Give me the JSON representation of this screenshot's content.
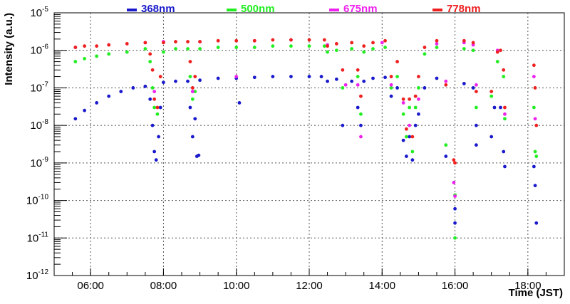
{
  "chart_data": {
    "type": "scatter",
    "title": "",
    "xlabel": "Time (JST)",
    "ylabel": "Intensity (a.u.)",
    "xlim": [
      "05:00",
      "19:00"
    ],
    "ylim": [
      1e-12,
      1e-05
    ],
    "y_scale": "log",
    "grid": true,
    "legend_position": "top",
    "x_tick_labels": [
      "06:00",
      "08:00",
      "10:00",
      "12:00",
      "14:00",
      "16:00",
      "18:00"
    ],
    "y_tick_labels": [
      {
        "value": 1e-12,
        "mantissa": "10",
        "exponent": "-12"
      },
      {
        "value": 1e-11,
        "mantissa": "10",
        "exponent": "-11"
      },
      {
        "value": 1e-10,
        "mantissa": "10",
        "exponent": "-10"
      },
      {
        "value": 1e-09,
        "mantissa": "10",
        "exponent": "-9"
      },
      {
        "value": 1e-08,
        "mantissa": "10",
        "exponent": "-8"
      },
      {
        "value": 1e-07,
        "mantissa": "10",
        "exponent": "-7"
      },
      {
        "value": 1e-06,
        "mantissa": "10",
        "exponent": "-6"
      },
      {
        "value": 1e-05,
        "mantissa": "10",
        "exponent": "-5"
      }
    ],
    "series": [
      {
        "name": "368nm",
        "color": "#1a1acc",
        "points": [
          [
            "05:35",
            1.5e-08
          ],
          [
            "05:50",
            2.5e-08
          ],
          [
            "06:10",
            4e-08
          ],
          [
            "06:30",
            6e-08
          ],
          [
            "06:50",
            8e-08
          ],
          [
            "07:10",
            1e-07
          ],
          [
            "07:30",
            1.1e-07
          ],
          [
            "07:38",
            5e-08
          ],
          [
            "07:42",
            1e-08
          ],
          [
            "07:45",
            2e-09
          ],
          [
            "07:48",
            1.2e-09
          ],
          [
            "07:52",
            5e-09
          ],
          [
            "07:55",
            3e-08
          ],
          [
            "08:00",
            1.4e-07
          ],
          [
            "08:20",
            1.5e-07
          ],
          [
            "08:40",
            1.5e-07
          ],
          [
            "08:44",
            3e-08
          ],
          [
            "08:48",
            5e-09
          ],
          [
            "08:52",
            1.5e-08
          ],
          [
            "08:55",
            1.5e-09
          ],
          [
            "08:58",
            1.6e-09
          ],
          [
            "09:00",
            1.6e-07
          ],
          [
            "09:30",
            1.8e-07
          ],
          [
            "10:00",
            1.8e-07
          ],
          [
            "10:05",
            4e-08
          ],
          [
            "10:30",
            1.9e-07
          ],
          [
            "11:00",
            2e-07
          ],
          [
            "11:30",
            2e-07
          ],
          [
            "12:00",
            2e-07
          ],
          [
            "12:20",
            2e-07
          ],
          [
            "12:30",
            1.5e-07
          ],
          [
            "12:45",
            1.7e-07
          ],
          [
            "12:55",
            1e-08
          ],
          [
            "13:10",
            1.5e-07
          ],
          [
            "13:20",
            3e-08
          ],
          [
            "13:25",
            1e-08
          ],
          [
            "13:30",
            1.5e-07
          ],
          [
            "13:45",
            1.8e-07
          ],
          [
            "14:05",
            1.9e-07
          ],
          [
            "14:15",
            6e-08
          ],
          [
            "14:25",
            1e-07
          ],
          [
            "14:35",
            4e-09
          ],
          [
            "14:40",
            1.5e-09
          ],
          [
            "14:45",
            5e-09
          ],
          [
            "14:50",
            1.2e-09
          ],
          [
            "14:55",
            1e-08
          ],
          [
            "15:00",
            2e-08
          ],
          [
            "15:10",
            1e-07
          ],
          [
            "15:30",
            1.8e-07
          ],
          [
            "15:45",
            1.5e-09
          ],
          [
            "16:00",
            6e-11
          ],
          [
            "16:00",
            2.5e-11
          ],
          [
            "16:15",
            1.3e-07
          ],
          [
            "16:30",
            1e-07
          ],
          [
            "16:35",
            1e-08
          ],
          [
            "16:35",
            3e-09
          ],
          [
            "17:00",
            5e-09
          ],
          [
            "17:05",
            3e-08
          ],
          [
            "17:15",
            3e-08
          ],
          [
            "17:20",
            2e-09
          ],
          [
            "17:22",
            8e-10
          ],
          [
            "18:10",
            8e-10
          ],
          [
            "18:12",
            2.5e-10
          ],
          [
            "18:14",
            2.5e-11
          ]
        ]
      },
      {
        "name": "500nm",
        "color": "#22ee22",
        "points": [
          [
            "05:35",
            5e-07
          ],
          [
            "05:50",
            6e-07
          ],
          [
            "06:10",
            7e-07
          ],
          [
            "06:30",
            8e-07
          ],
          [
            "07:00",
            9e-07
          ],
          [
            "07:30",
            1.1e-06
          ],
          [
            "07:38",
            5e-07
          ],
          [
            "07:42",
            1e-07
          ],
          [
            "07:45",
            3e-08
          ],
          [
            "07:50",
            2e-08
          ],
          [
            "08:00",
            9e-07
          ],
          [
            "08:20",
            1.1e-06
          ],
          [
            "08:40",
            1.1e-06
          ],
          [
            "08:44",
            2e-07
          ],
          [
            "08:48",
            5e-08
          ],
          [
            "08:52",
            8e-08
          ],
          [
            "09:00",
            1.1e-06
          ],
          [
            "09:30",
            1.2e-06
          ],
          [
            "10:00",
            1.2e-06
          ],
          [
            "10:30",
            1.2e-06
          ],
          [
            "11:00",
            1.3e-06
          ],
          [
            "11:30",
            1.3e-06
          ],
          [
            "12:00",
            1.3e-06
          ],
          [
            "12:25",
            1.3e-06
          ],
          [
            "12:30",
            9e-07
          ],
          [
            "12:45",
            1e-06
          ],
          [
            "12:55",
            1e-07
          ],
          [
            "13:10",
            1.1e-06
          ],
          [
            "13:20",
            2e-07
          ],
          [
            "13:25",
            2e-08
          ],
          [
            "13:30",
            9e-07
          ],
          [
            "13:45",
            1.1e-06
          ],
          [
            "14:05",
            1.2e-06
          ],
          [
            "14:15",
            1e-07
          ],
          [
            "14:25",
            2e-07
          ],
          [
            "14:35",
            2e-08
          ],
          [
            "14:40",
            5e-09
          ],
          [
            "14:45",
            3e-08
          ],
          [
            "14:50",
            2e-09
          ],
          [
            "14:55",
            3e-08
          ],
          [
            "15:00",
            1e-07
          ],
          [
            "15:10",
            8e-07
          ],
          [
            "15:30",
            1.2e-06
          ],
          [
            "15:45",
            3e-09
          ],
          [
            "16:00",
            1e-11
          ],
          [
            "16:00",
            1.4e-10
          ],
          [
            "16:15",
            1.1e-06
          ],
          [
            "16:30",
            1e-06
          ],
          [
            "16:35",
            3e-08
          ],
          [
            "17:00",
            6e-08
          ],
          [
            "17:10",
            5e-07
          ],
          [
            "17:20",
            2e-07
          ],
          [
            "17:22",
            1.5e-08
          ],
          [
            "18:10",
            3e-08
          ],
          [
            "18:12",
            2e-09
          ],
          [
            "18:14",
            1.5e-09
          ]
        ]
      },
      {
        "name": "675nm",
        "color": "#ee22ee",
        "points": [
          [
            "05:35",
            1.2e-06
          ],
          [
            "06:30",
            1.4e-06
          ],
          [
            "07:30",
            1.6e-06
          ],
          [
            "07:45",
            8e-08
          ],
          [
            "08:00",
            1.7e-06
          ],
          [
            "08:48",
            8e-08
          ],
          [
            "09:00",
            1.7e-06
          ],
          [
            "10:00",
            2e-07
          ],
          [
            "10:30",
            1.8e-06
          ],
          [
            "11:30",
            1.9e-06
          ],
          [
            "12:30",
            1.4e-06
          ],
          [
            "13:00",
            1.2e-07
          ],
          [
            "13:20",
            1.2e-07
          ],
          [
            "13:25",
            5e-09
          ],
          [
            "14:00",
            1.6e-06
          ],
          [
            "14:15",
            1.2e-07
          ],
          [
            "14:35",
            4e-08
          ],
          [
            "14:45",
            1e-08
          ],
          [
            "15:00",
            5e-08
          ],
          [
            "15:30",
            1.5e-06
          ],
          [
            "15:45",
            1.5e-07
          ],
          [
            "15:58",
            3e-10
          ],
          [
            "16:00",
            1.3e-10
          ],
          [
            "16:15",
            1.6e-06
          ],
          [
            "16:30",
            1.4e-06
          ],
          [
            "16:35",
            1.2e-07
          ],
          [
            "17:10",
            1e-06
          ],
          [
            "17:22",
            2e-08
          ],
          [
            "18:10",
            2e-07
          ],
          [
            "18:12",
            1.5e-08
          ]
        ]
      },
      {
        "name": "778nm",
        "color": "#ee2020",
        "points": [
          [
            "05:35",
            1.2e-06
          ],
          [
            "05:50",
            1.3e-06
          ],
          [
            "06:10",
            1.3e-06
          ],
          [
            "06:30",
            1.4e-06
          ],
          [
            "07:00",
            1.5e-06
          ],
          [
            "07:30",
            1.6e-06
          ],
          [
            "07:38",
            8e-07
          ],
          [
            "07:42",
            3e-07
          ],
          [
            "07:45",
            5e-08
          ],
          [
            "07:50",
            3e-08
          ],
          [
            "07:55",
            2e-07
          ],
          [
            "08:00",
            1.6e-06
          ],
          [
            "08:20",
            1.7e-06
          ],
          [
            "08:40",
            1.7e-06
          ],
          [
            "08:44",
            5e-07
          ],
          [
            "08:48",
            1e-07
          ],
          [
            "08:52",
            2e-07
          ],
          [
            "09:00",
            1.7e-06
          ],
          [
            "09:30",
            1.8e-06
          ],
          [
            "10:00",
            1.8e-06
          ],
          [
            "10:30",
            1.8e-06
          ],
          [
            "11:00",
            1.9e-06
          ],
          [
            "11:30",
            1.9e-06
          ],
          [
            "12:00",
            1.9e-06
          ],
          [
            "12:25",
            1.9e-06
          ],
          [
            "12:30",
            1.3e-06
          ],
          [
            "12:45",
            1.5e-06
          ],
          [
            "12:55",
            3e-07
          ],
          [
            "13:10",
            1.6e-06
          ],
          [
            "13:20",
            3e-07
          ],
          [
            "13:25",
            6e-08
          ],
          [
            "13:30",
            1.3e-06
          ],
          [
            "13:45",
            1.6e-06
          ],
          [
            "14:05",
            1.8e-06
          ],
          [
            "14:15",
            2e-07
          ],
          [
            "14:25",
            5e-07
          ],
          [
            "14:35",
            5e-08
          ],
          [
            "14:40",
            8e-09
          ],
          [
            "14:45",
            5e-08
          ],
          [
            "14:50",
            5e-09
          ],
          [
            "14:55",
            6e-08
          ],
          [
            "15:00",
            2e-07
          ],
          [
            "15:10",
            1.2e-06
          ],
          [
            "15:30",
            1.8e-06
          ],
          [
            "15:45",
            1.2e-07
          ],
          [
            "15:58",
            1.2e-09
          ],
          [
            "16:00",
            1e-09
          ],
          [
            "16:15",
            1.8e-06
          ],
          [
            "16:30",
            1.6e-06
          ],
          [
            "16:35",
            8e-08
          ],
          [
            "17:00",
            8e-08
          ],
          [
            "17:10",
            9e-07
          ],
          [
            "17:15",
            1e-06
          ],
          [
            "17:20",
            3e-07
          ],
          [
            "17:22",
            3e-08
          ],
          [
            "18:10",
            4e-07
          ],
          [
            "18:12",
            1e-07
          ],
          [
            "18:14",
            1e-08
          ]
        ]
      }
    ]
  }
}
